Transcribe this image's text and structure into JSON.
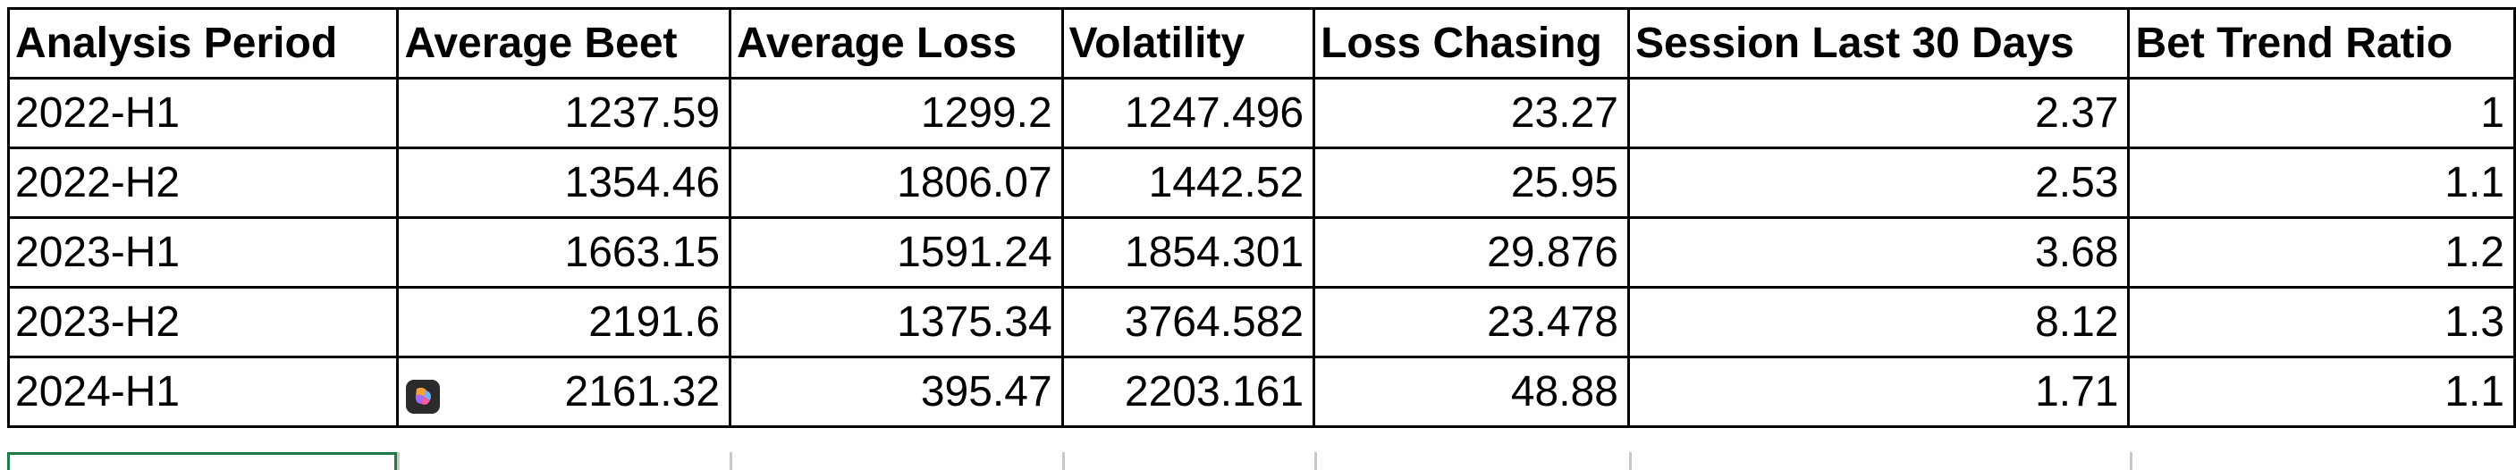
{
  "table": {
    "headers": [
      "Analysis Period",
      "Average Beet",
      "Average Loss",
      "Volatility",
      "Loss Chasing",
      "Session Last 30 Days",
      "Bet Trend Ratio"
    ],
    "rows": [
      [
        "2022-H1",
        "1237.59",
        "1299.2",
        "1247.496",
        "23.27",
        "2.37",
        "1"
      ],
      [
        "2022-H2",
        "1354.46",
        "1806.07",
        "1442.52",
        "25.95",
        "2.53",
        "1.1"
      ],
      [
        "2023-H1",
        "1663.15",
        "1591.24",
        "1854.301",
        "29.876",
        "3.68",
        "1.2"
      ],
      [
        "2023-H2",
        "2191.6",
        "1375.34",
        "3764.582",
        "23.478",
        "8.12",
        "1.3"
      ],
      [
        "2024-H1",
        "2161.32",
        "395.47",
        "2203.161",
        "48.88",
        "1.71",
        "1.1"
      ]
    ]
  },
  "icons": {
    "copilot_button": "copilot-icon"
  },
  "colors": {
    "selection_border": "#1e7b45",
    "grid_border": "#000000"
  }
}
